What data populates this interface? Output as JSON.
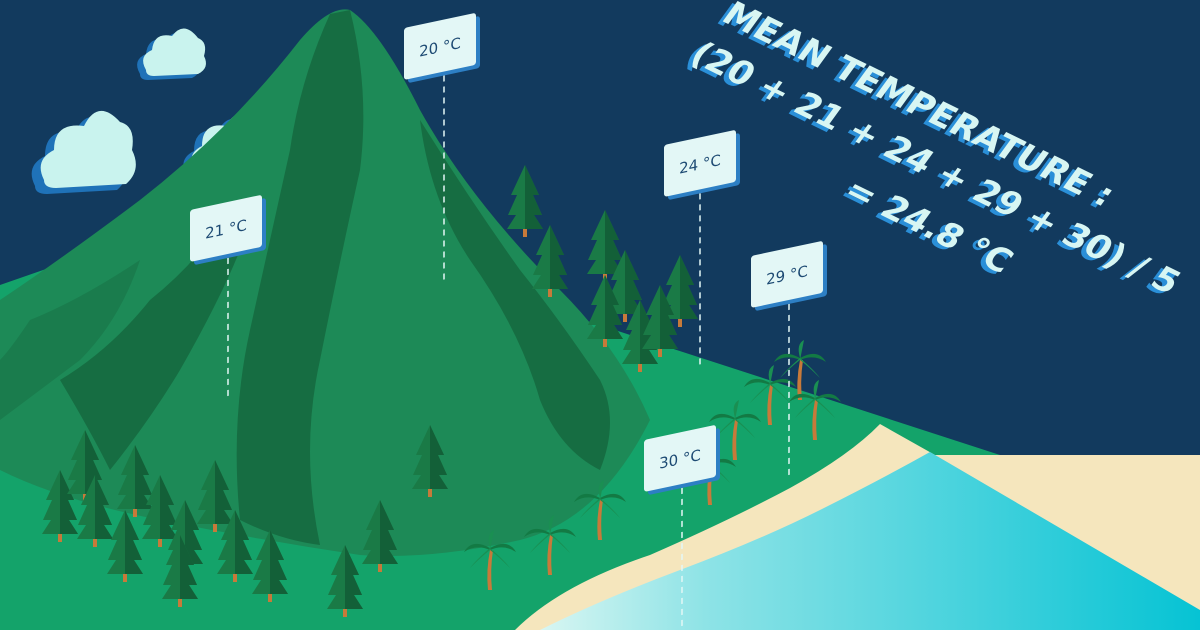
{
  "formula": {
    "lines": [
      "MEAN TEMPERATURE :",
      "(20 + 21 + 24 + 29 + 30) / 5",
      "= 24.8 °C"
    ],
    "text_color": "#d8f6f3",
    "shadow_color": "#2a8fd8"
  },
  "temperature_signs": [
    {
      "label": "20 °C"
    },
    {
      "label": "21 °C"
    },
    {
      "label": "24 °C"
    },
    {
      "label": "29 °C"
    },
    {
      "label": "30 °C"
    }
  ],
  "colors": {
    "sky": "#123a5e",
    "land": "#14a36a",
    "mountain": "#1d8a57",
    "mountain_shadow": "#166d42",
    "sand": "#f5e6bd",
    "sea_light": "#bff0ee",
    "sea_deep": "#10c6d2",
    "cloud": "#c9f3ee",
    "cloud_shadow": "#1f72b8",
    "sign_face": "#e3f7f6",
    "sign_edge": "#2d7fc4"
  }
}
